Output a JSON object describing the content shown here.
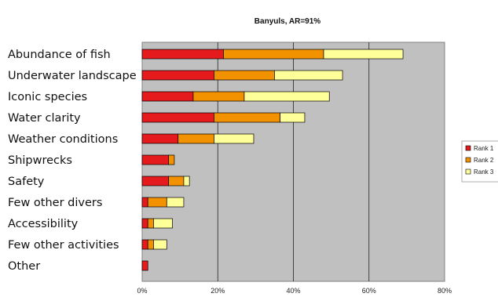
{
  "chart_data": {
    "type": "bar",
    "orientation": "horizontal",
    "stacked": true,
    "title": "Banyuls, AR=91%",
    "categories": [
      "Abundance of fish",
      "Underwater landscape",
      "Iconic species",
      "Water clarity",
      "Weather conditions",
      "Shipwrecks",
      "Safety",
      "Few other divers",
      "Accessibility",
      "Few other activities",
      "Other"
    ],
    "series": [
      {
        "name": "Rank 1",
        "color": "#e41a1c",
        "values": [
          21.5,
          19,
          13.5,
          19,
          9.5,
          7,
          7,
          1.5,
          1.5,
          1.5,
          1.5
        ]
      },
      {
        "name": "Rank 2",
        "color": "#f39200",
        "values": [
          26.5,
          16,
          13.5,
          17.5,
          9.5,
          1.5,
          4,
          5,
          1.5,
          1.5,
          0
        ]
      },
      {
        "name": "Rank 3",
        "color": "#ffff99",
        "values": [
          21,
          18,
          22.5,
          6.5,
          10.5,
          0,
          1.5,
          4.5,
          5,
          3.5,
          0
        ]
      }
    ],
    "xlim": [
      0,
      80
    ],
    "xticks": [
      "0%",
      "20%",
      "40%",
      "60%",
      "80%"
    ],
    "grid": "vertical",
    "plot_background": "#c0c0c0",
    "legend_position": "right"
  }
}
